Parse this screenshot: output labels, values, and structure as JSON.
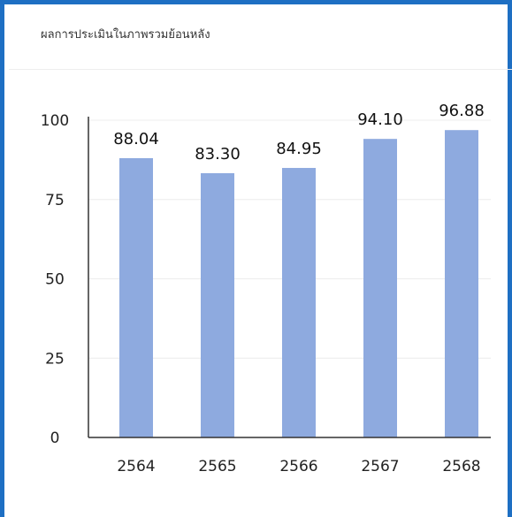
{
  "title": "ผลการประเมินในภาพรวมย้อนหลัง",
  "chart_data": {
    "type": "bar",
    "title": "ผลการประเมินในภาพรวมย้อนหลัง",
    "categories": [
      "2564",
      "2565",
      "2566",
      "2567",
      "2568"
    ],
    "values": [
      88.04,
      83.3,
      84.95,
      94.1,
      96.88
    ],
    "value_labels": [
      "88.04",
      "83.30",
      "84.95",
      "94.10",
      "96.88"
    ],
    "y_ticks": [
      0,
      25,
      50,
      75,
      100
    ],
    "ylim": [
      0,
      100
    ],
    "grid": true,
    "legend": "none",
    "bar_color": "#8eaadf"
  }
}
